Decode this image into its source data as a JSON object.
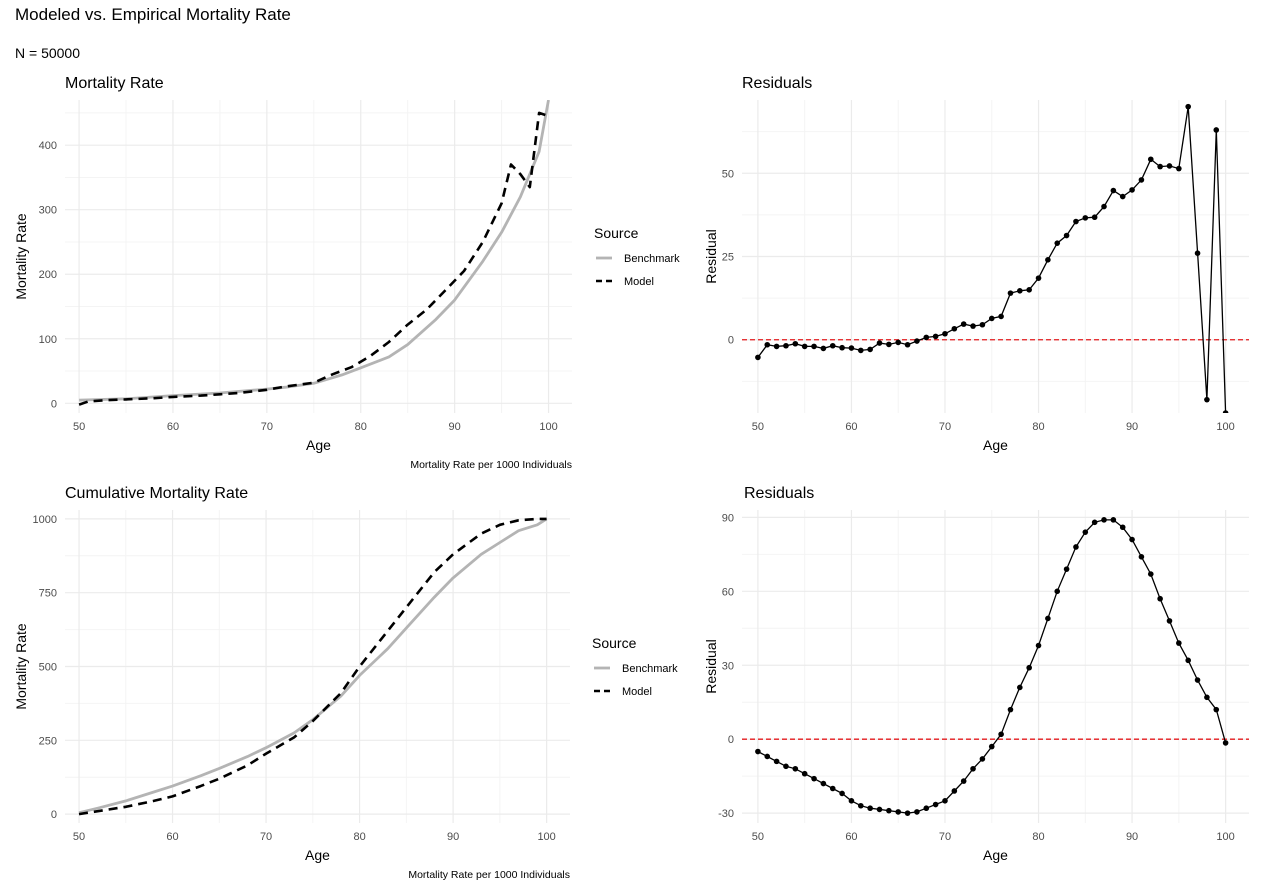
{
  "title": "Modeled vs. Empirical Mortality Rate",
  "subtitle": "N = 50000",
  "colors": {
    "benchmark": "#b4b4b4",
    "model": "#000000",
    "zero_line": "#e31a1c",
    "grid_major": "#ebebeb",
    "grid_minor": "#f4f4f4"
  },
  "chart_data": [
    {
      "type": "line",
      "title": "Mortality Rate",
      "xlabel": "Age",
      "ylabel": "Mortality Rate",
      "caption": "Mortality Rate per 1000 Individuals",
      "legend": {
        "title": "Source",
        "placement": "right",
        "entries": [
          "Benchmark",
          "Model"
        ]
      },
      "xlim": [
        48.5,
        102.5
      ],
      "ylim": [
        -15,
        470
      ],
      "xticks": [
        50,
        60,
        70,
        80,
        90,
        100
      ],
      "yticks": [
        0,
        100,
        200,
        300,
        400
      ],
      "grid": true,
      "series": [
        {
          "name": "Benchmark",
          "x": [
            50,
            55,
            60,
            65,
            70,
            72,
            75,
            78,
            80,
            83,
            85,
            88,
            90,
            93,
            95,
            97,
            99,
            100
          ],
          "y": [
            5,
            7,
            12,
            16,
            22,
            25,
            31,
            44,
            55,
            72,
            91,
            130,
            160,
            220,
            265,
            320,
            390,
            470
          ]
        },
        {
          "name": "Model",
          "x": [
            50,
            51,
            53,
            55,
            58,
            60,
            63,
            65,
            67,
            70,
            72,
            75,
            77,
            79,
            81,
            83,
            85,
            87,
            89,
            91,
            93,
            95,
            96,
            97,
            98,
            99,
            100
          ],
          "y": [
            -2,
            3,
            5,
            6,
            8,
            10,
            12,
            14,
            16,
            21,
            26,
            32,
            45,
            56,
            73,
            95,
            122,
            145,
            175,
            205,
            250,
            310,
            370,
            355,
            335,
            450,
            445
          ]
        }
      ]
    },
    {
      "type": "line",
      "title": "Residuals",
      "xlabel": "Age",
      "ylabel": "Residual",
      "xlim": [
        48.3,
        102.5
      ],
      "ylim": [
        -22,
        72
      ],
      "xticks": [
        50,
        60,
        70,
        80,
        90,
        100
      ],
      "yticks": [
        0,
        25,
        50
      ],
      "grid": true,
      "hline": 0,
      "series": [
        {
          "name": "",
          "x": [
            50,
            51,
            52,
            53,
            54,
            55,
            56,
            57,
            58,
            59,
            60,
            61,
            62,
            63,
            64,
            65,
            66,
            67,
            68,
            69,
            70,
            71,
            72,
            73,
            74,
            75,
            76,
            77,
            78,
            79,
            80,
            81,
            82,
            83,
            84,
            85,
            86,
            87,
            88,
            89,
            90,
            91,
            92,
            93,
            94,
            95,
            96,
            97,
            98,
            99,
            100
          ],
          "y": [
            -5.3,
            -1.5,
            -2.0,
            -1.8,
            -1.2,
            -2.0,
            -2.0,
            -2.6,
            -1.8,
            -2.4,
            -2.5,
            -3.2,
            -2.9,
            -1.0,
            -1.4,
            -0.8,
            -1.5,
            -0.4,
            0.7,
            1.0,
            1.8,
            3.3,
            4.7,
            4.1,
            4.5,
            6.4,
            7.0,
            14.0,
            14.7,
            15.0,
            18.5,
            24.0,
            29.0,
            31.3,
            35.5,
            36.6,
            36.8,
            40.0,
            44.8,
            43.0,
            45.0,
            48.0,
            54.2,
            52.0,
            52.2,
            51.4,
            70.0,
            26.0,
            -18.0,
            63.0,
            -22.0
          ]
        }
      ]
    },
    {
      "type": "line",
      "title": "Cumulative Mortality Rate",
      "xlabel": "Age",
      "ylabel": "Mortality Rate",
      "caption": "Mortality Rate per 1000 Individuals",
      "legend": {
        "title": "Source",
        "placement": "right",
        "entries": [
          "Benchmark",
          "Model"
        ]
      },
      "xlim": [
        48.5,
        102.5
      ],
      "ylim": [
        -30,
        1030
      ],
      "xticks": [
        50,
        60,
        70,
        80,
        90,
        100
      ],
      "yticks": [
        0,
        250,
        500,
        750,
        1000
      ],
      "grid": true,
      "series": [
        {
          "name": "Benchmark",
          "x": [
            50,
            52,
            55,
            58,
            60,
            63,
            65,
            68,
            70,
            73,
            75,
            78,
            80,
            83,
            85,
            88,
            90,
            93,
            95,
            97,
            99,
            100
          ],
          "y": [
            5,
            20,
            45,
            75,
            95,
            130,
            155,
            195,
            225,
            275,
            320,
            400,
            470,
            560,
            630,
            735,
            800,
            880,
            920,
            960,
            980,
            1000
          ]
        },
        {
          "name": "Model",
          "x": [
            50,
            52,
            55,
            58,
            60,
            63,
            65,
            68,
            70,
            73,
            75,
            78,
            80,
            83,
            85,
            88,
            90,
            93,
            95,
            97,
            99,
            100
          ],
          "y": [
            0,
            10,
            25,
            45,
            60,
            95,
            120,
            165,
            205,
            260,
            315,
            410,
            500,
            620,
            700,
            820,
            880,
            950,
            980,
            995,
            1000,
            1000
          ]
        }
      ]
    },
    {
      "type": "line",
      "title": "Residuals",
      "xlabel": "Age",
      "ylabel": "Residual",
      "xlim": [
        48.3,
        102.5
      ],
      "ylim": [
        -34,
        93
      ],
      "xticks": [
        50,
        60,
        70,
        80,
        90,
        100
      ],
      "yticks": [
        -30,
        0,
        30,
        60,
        90
      ],
      "grid": true,
      "hline": 0,
      "series": [
        {
          "name": "",
          "x": [
            50,
            51,
            52,
            53,
            54,
            55,
            56,
            57,
            58,
            59,
            60,
            61,
            62,
            63,
            64,
            65,
            66,
            67,
            68,
            69,
            70,
            71,
            72,
            73,
            74,
            75,
            76,
            77,
            78,
            79,
            80,
            81,
            82,
            83,
            84,
            85,
            86,
            87,
            88,
            89,
            90,
            91,
            92,
            93,
            94,
            95,
            96,
            97,
            98,
            99,
            100
          ],
          "y": [
            -5,
            -7,
            -9,
            -11,
            -12,
            -14,
            -16,
            -18,
            -20,
            -22,
            -25,
            -27,
            -28,
            -28.5,
            -29,
            -29.5,
            -30,
            -29.5,
            -28,
            -26.5,
            -25,
            -21,
            -17,
            -12,
            -8,
            -3,
            2,
            12,
            21,
            29,
            38,
            49,
            60,
            69,
            78,
            84,
            88,
            89,
            89,
            86,
            81,
            74,
            67,
            57,
            48,
            39,
            32,
            24,
            17,
            12,
            -1.5
          ]
        }
      ]
    }
  ]
}
